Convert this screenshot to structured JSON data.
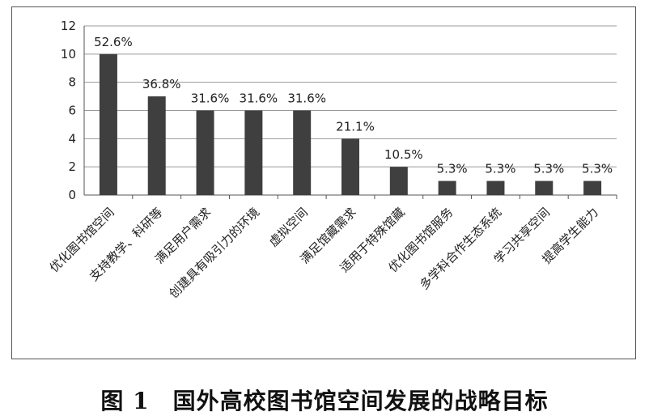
{
  "chart_data": {
    "type": "bar",
    "categories": [
      "优化图书馆空间",
      "支持教学、科研等",
      "满足用户需求",
      "创建具有吸引力的环境",
      "虚拟空间",
      "满足馆藏需求",
      "适用于特殊馆藏",
      "优化图书馆服务",
      "多学科合作生态系统",
      "学习共享空间",
      "提高学生能力"
    ],
    "values": [
      10,
      7,
      6,
      6,
      6,
      4,
      2,
      1,
      1,
      1,
      1
    ],
    "data_labels": [
      "52.6%",
      "36.8%",
      "31.6%",
      "31.6%",
      "31.6%",
      "21.1%",
      "10.5%",
      "5.3%",
      "5.3%",
      "5.3%",
      "5.3%"
    ],
    "yticks": [
      "0",
      "2",
      "4",
      "6",
      "8",
      "10",
      "12"
    ],
    "ylim": [
      0,
      12
    ],
    "grid": true,
    "legend": "none",
    "bar_color": "#3f3f3f",
    "grid_color": "#9a9a9a"
  },
  "caption": "图 1　国外高校图书馆空间发展的战略目标"
}
